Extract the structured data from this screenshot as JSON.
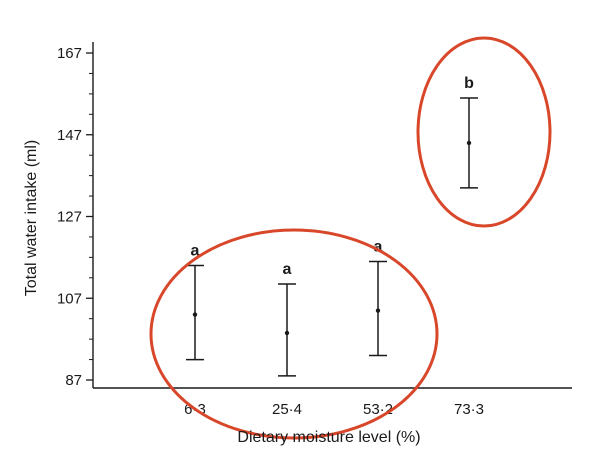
{
  "chart_data": {
    "type": "scatter",
    "xlabel": "Dietary moisture level (%)",
    "ylabel": "Total water intake (ml)",
    "ylim": [
      84,
      169
    ],
    "y_ticks": [
      87,
      107,
      127,
      147,
      167
    ],
    "categories": [
      "6·3",
      "25·4",
      "53·2",
      "73·3"
    ],
    "means": [
      103,
      98.5,
      104,
      145
    ],
    "error_low": [
      92,
      88,
      93,
      134
    ],
    "error_high": [
      115,
      110.5,
      116,
      156
    ],
    "significance_letters": [
      "a",
      "a",
      "a",
      "b"
    ],
    "grid": false,
    "highlight_ellipses": [
      {
        "categories": [
          "6·3",
          "25·4",
          "53·2"
        ],
        "color": "#d9472b"
      },
      {
        "categories": [
          "73·3"
        ],
        "color": "#d9472b"
      }
    ]
  }
}
